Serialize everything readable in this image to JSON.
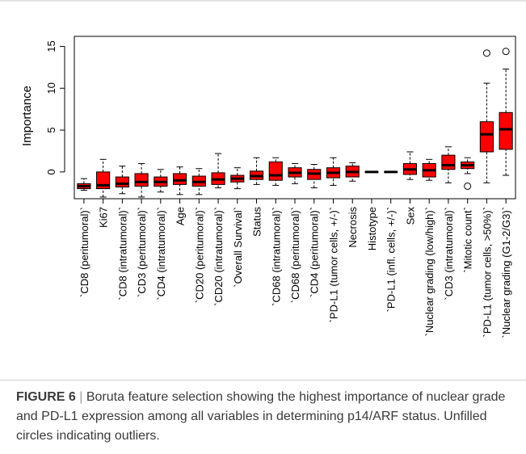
{
  "chart_data": {
    "type": "box",
    "title": "",
    "xlabel": "",
    "ylabel": "Importance",
    "ylim": [
      -3.2,
      16.2
    ],
    "yticks": [
      0,
      5,
      10,
      15
    ],
    "grid": false,
    "categories": [
      "`CD8 (peritumoral)`",
      "Ki67",
      "`CD8 (intratumoral)`",
      "`CD3 (peritumoral)`",
      "`CD4 (intratumoral)`",
      "Age",
      "`CD20 (peritumoral)`",
      "`CD20 (intratumoral)`",
      "`Overall Survival`",
      "Status",
      "`CD68 (intratumoral)`",
      "`CD68 (peritumoral)`",
      "`CD4 (peritumoral)`",
      "`PD-L1 (tumor cells, +/-)`",
      "Necrosis",
      "Histotype",
      "`PD-L1 (infl. cells, +/-)`",
      "Sex",
      "`Nuclear grading (low/high)`",
      "`CD3 (intratumoral)`",
      "`Mitotic count`",
      "`PD-L1 (tumor cells, >50%)`",
      "`Nuclear grading (G1-2/G3)`"
    ],
    "boxes": [
      {
        "min": -2.2,
        "q1": -2.0,
        "median": -1.7,
        "q3": -1.4,
        "max": -0.8,
        "outliers": []
      },
      {
        "min": -3.0,
        "q1": -2.0,
        "median": -1.6,
        "q3": 0.0,
        "max": 1.5,
        "outliers": []
      },
      {
        "min": -2.6,
        "q1": -1.8,
        "median": -1.4,
        "q3": -0.6,
        "max": 0.7,
        "outliers": []
      },
      {
        "min": -3.0,
        "q1": -1.7,
        "median": -1.2,
        "q3": -0.2,
        "max": 1.0,
        "outliers": []
      },
      {
        "min": -2.4,
        "q1": -1.7,
        "median": -1.2,
        "q3": -0.6,
        "max": 0.3,
        "outliers": []
      },
      {
        "min": -2.7,
        "q1": -1.5,
        "median": -1.0,
        "q3": -0.2,
        "max": 0.6,
        "outliers": []
      },
      {
        "min": -2.7,
        "q1": -1.7,
        "median": -1.2,
        "q3": -0.5,
        "max": 0.4,
        "outliers": []
      },
      {
        "min": -1.9,
        "q1": -1.5,
        "median": -0.9,
        "q3": -0.1,
        "max": 2.2,
        "outliers": []
      },
      {
        "min": -2.0,
        "q1": -1.2,
        "median": -0.8,
        "q3": -0.4,
        "max": 0.5,
        "outliers": []
      },
      {
        "min": -1.5,
        "q1": -0.9,
        "median": -0.5,
        "q3": 0.1,
        "max": 1.7,
        "outliers": []
      },
      {
        "min": -1.6,
        "q1": -1.0,
        "median": -0.4,
        "q3": 1.2,
        "max": 1.7,
        "outliers": []
      },
      {
        "min": -1.4,
        "q1": -0.6,
        "median": -0.1,
        "q3": 0.5,
        "max": 1.0,
        "outliers": []
      },
      {
        "min": -1.9,
        "q1": -0.9,
        "median": -0.2,
        "q3": 0.3,
        "max": 0.9,
        "outliers": []
      },
      {
        "min": -1.6,
        "q1": -0.7,
        "median": -0.1,
        "q3": 0.5,
        "max": 1.7,
        "outliers": []
      },
      {
        "min": -1.1,
        "q1": -0.6,
        "median": 0.0,
        "q3": 0.7,
        "max": 1.1,
        "outliers": []
      },
      {
        "min": 0.0,
        "q1": 0.0,
        "median": 0.0,
        "q3": 0.0,
        "max": 0.0,
        "outliers": []
      },
      {
        "min": 0.0,
        "q1": 0.0,
        "median": 0.0,
        "q3": 0.0,
        "max": 0.0,
        "outliers": []
      },
      {
        "min": -0.9,
        "q1": -0.3,
        "median": 0.3,
        "q3": 1.0,
        "max": 2.4,
        "outliers": []
      },
      {
        "min": -1.0,
        "q1": -0.6,
        "median": 0.2,
        "q3": 1.0,
        "max": 1.5,
        "outliers": []
      },
      {
        "min": -1.3,
        "q1": 0.3,
        "median": 0.8,
        "q3": 2.0,
        "max": 3.0,
        "outliers": []
      },
      {
        "min": -0.2,
        "q1": 0.4,
        "median": 0.8,
        "q3": 1.2,
        "max": 1.7,
        "outliers": [
          -1.7
        ]
      },
      {
        "min": -1.3,
        "q1": 2.4,
        "median": 4.5,
        "q3": 6.0,
        "max": 10.6,
        "outliers": [
          14.2
        ]
      },
      {
        "min": -0.4,
        "q1": 2.7,
        "median": 5.1,
        "q3": 7.1,
        "max": 12.3,
        "outliers": [
          14.4
        ]
      }
    ],
    "box_color": "#ff0000"
  },
  "caption": {
    "label": "FIGURE 6",
    "separator": "|",
    "text": "Boruta feature selection showing the highest importance of nuclear grade and PD-L1 expression among all variables in determining p14/ARF status. Unfilled circles indicating outliers."
  }
}
